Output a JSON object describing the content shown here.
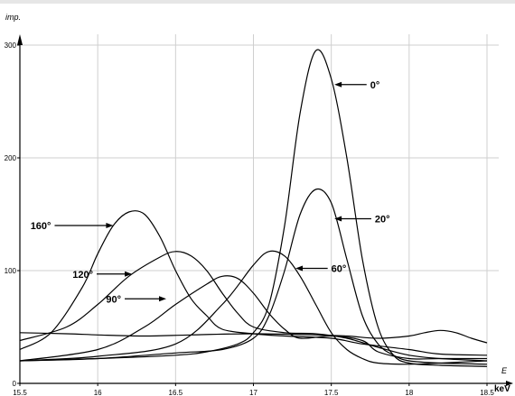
{
  "chart_data": {
    "type": "line",
    "title": "",
    "ylabel": "imp.",
    "xlabel_top": "E",
    "xlabel_unit": "keV",
    "xlim": [
      15.5,
      18.5
    ],
    "ylim": [
      0,
      300
    ],
    "grid": true,
    "xticks": [
      "15.5",
      "16",
      "16.5",
      "17",
      "17.5",
      "18",
      "18.5"
    ],
    "xtick_values": [
      15.5,
      16,
      16.5,
      17,
      17.5,
      18,
      18.5
    ],
    "yticks": [
      "0",
      "100",
      "200",
      "300"
    ],
    "ytick_values": [
      0,
      100,
      200,
      300
    ],
    "series": [
      {
        "name": "0°",
        "x": [
          15.5,
          16.0,
          16.5,
          16.7,
          16.9,
          17.0,
          17.1,
          17.2,
          17.3,
          17.4,
          17.5,
          17.6,
          17.7,
          17.8,
          17.9,
          18.0,
          18.2,
          18.5
        ],
        "y": [
          20,
          22,
          25,
          28,
          35,
          45,
          70,
          140,
          240,
          295,
          270,
          200,
          110,
          50,
          25,
          18,
          16,
          15
        ]
      },
      {
        "name": "20°",
        "x": [
          15.5,
          16.0,
          16.5,
          16.8,
          17.0,
          17.1,
          17.2,
          17.3,
          17.4,
          17.5,
          17.6,
          17.7,
          17.8,
          17.9,
          18.0,
          18.2,
          18.5
        ],
        "y": [
          20,
          22,
          27,
          30,
          40,
          60,
          100,
          150,
          172,
          160,
          110,
          60,
          35,
          25,
          20,
          18,
          17
        ]
      },
      {
        "name": "60°",
        "x": [
          15.5,
          16.0,
          16.5,
          16.8,
          17.0,
          17.1,
          17.2,
          17.3,
          17.4,
          17.5,
          17.6,
          17.7,
          17.8,
          18.0,
          18.2,
          18.5
        ],
        "y": [
          20,
          24,
          35,
          70,
          105,
          117,
          113,
          95,
          70,
          45,
          30,
          22,
          18,
          17,
          18,
          20
        ]
      },
      {
        "name": "90°",
        "x": [
          15.5,
          16.0,
          16.3,
          16.5,
          16.7,
          16.8,
          16.9,
          17.0,
          17.1,
          17.2,
          17.3,
          17.5,
          17.7,
          17.8,
          18.0,
          18.2,
          18.5
        ],
        "y": [
          20,
          30,
          50,
          70,
          88,
          95,
          93,
          80,
          62,
          48,
          40,
          42,
          38,
          28,
          22,
          22,
          22
        ]
      },
      {
        "name": "120°",
        "x": [
          15.5,
          15.8,
          16.0,
          16.2,
          16.4,
          16.5,
          16.6,
          16.7,
          16.8,
          16.9,
          17.0,
          17.2,
          17.4,
          17.6,
          17.8,
          18.0,
          18.2,
          18.5
        ],
        "y": [
          38,
          50,
          70,
          95,
          112,
          117,
          113,
          100,
          80,
          62,
          50,
          45,
          44,
          40,
          32,
          25,
          22,
          20
        ]
      },
      {
        "name": "160°",
        "x": [
          15.5,
          15.7,
          15.9,
          16.0,
          16.1,
          16.2,
          16.3,
          16.4,
          16.5,
          16.6,
          16.7,
          16.8,
          17.0,
          17.2,
          17.5,
          17.7,
          18.0,
          18.2,
          18.5
        ],
        "y": [
          30,
          45,
          85,
          115,
          140,
          152,
          150,
          130,
          100,
          75,
          60,
          48,
          44,
          42,
          40,
          35,
          30,
          26,
          25
        ]
      },
      {
        "name": "",
        "x": [
          15.5,
          15.8,
          16.0,
          16.3,
          16.6,
          17.0,
          17.4,
          17.6,
          17.8,
          18.0,
          18.1,
          18.2,
          18.3,
          18.4,
          18.5
        ],
        "y": [
          45,
          44,
          43,
          42,
          43,
          44,
          43,
          42,
          40,
          42,
          45,
          47,
          45,
          40,
          36
        ]
      }
    ],
    "annotations": [
      {
        "text": "0°",
        "x": 17.75,
        "y": 265,
        "arrow_to_x": 17.52,
        "arrow_to_y": 265
      },
      {
        "text": "20°",
        "x": 17.78,
        "y": 146,
        "arrow_to_x": 17.52,
        "arrow_to_y": 146
      },
      {
        "text": "60°",
        "x": 17.5,
        "y": 102,
        "arrow_to_x": 17.27,
        "arrow_to_y": 102
      },
      {
        "text": "160°",
        "x": 15.7,
        "y": 140,
        "arrow_to_x": 16.1,
        "arrow_to_y": 140
      },
      {
        "text": "120°",
        "x": 15.97,
        "y": 97,
        "arrow_to_x": 16.22,
        "arrow_to_y": 97
      },
      {
        "text": "90°",
        "x": 16.15,
        "y": 75,
        "arrow_to_x": 16.44,
        "arrow_to_y": 75
      }
    ]
  }
}
